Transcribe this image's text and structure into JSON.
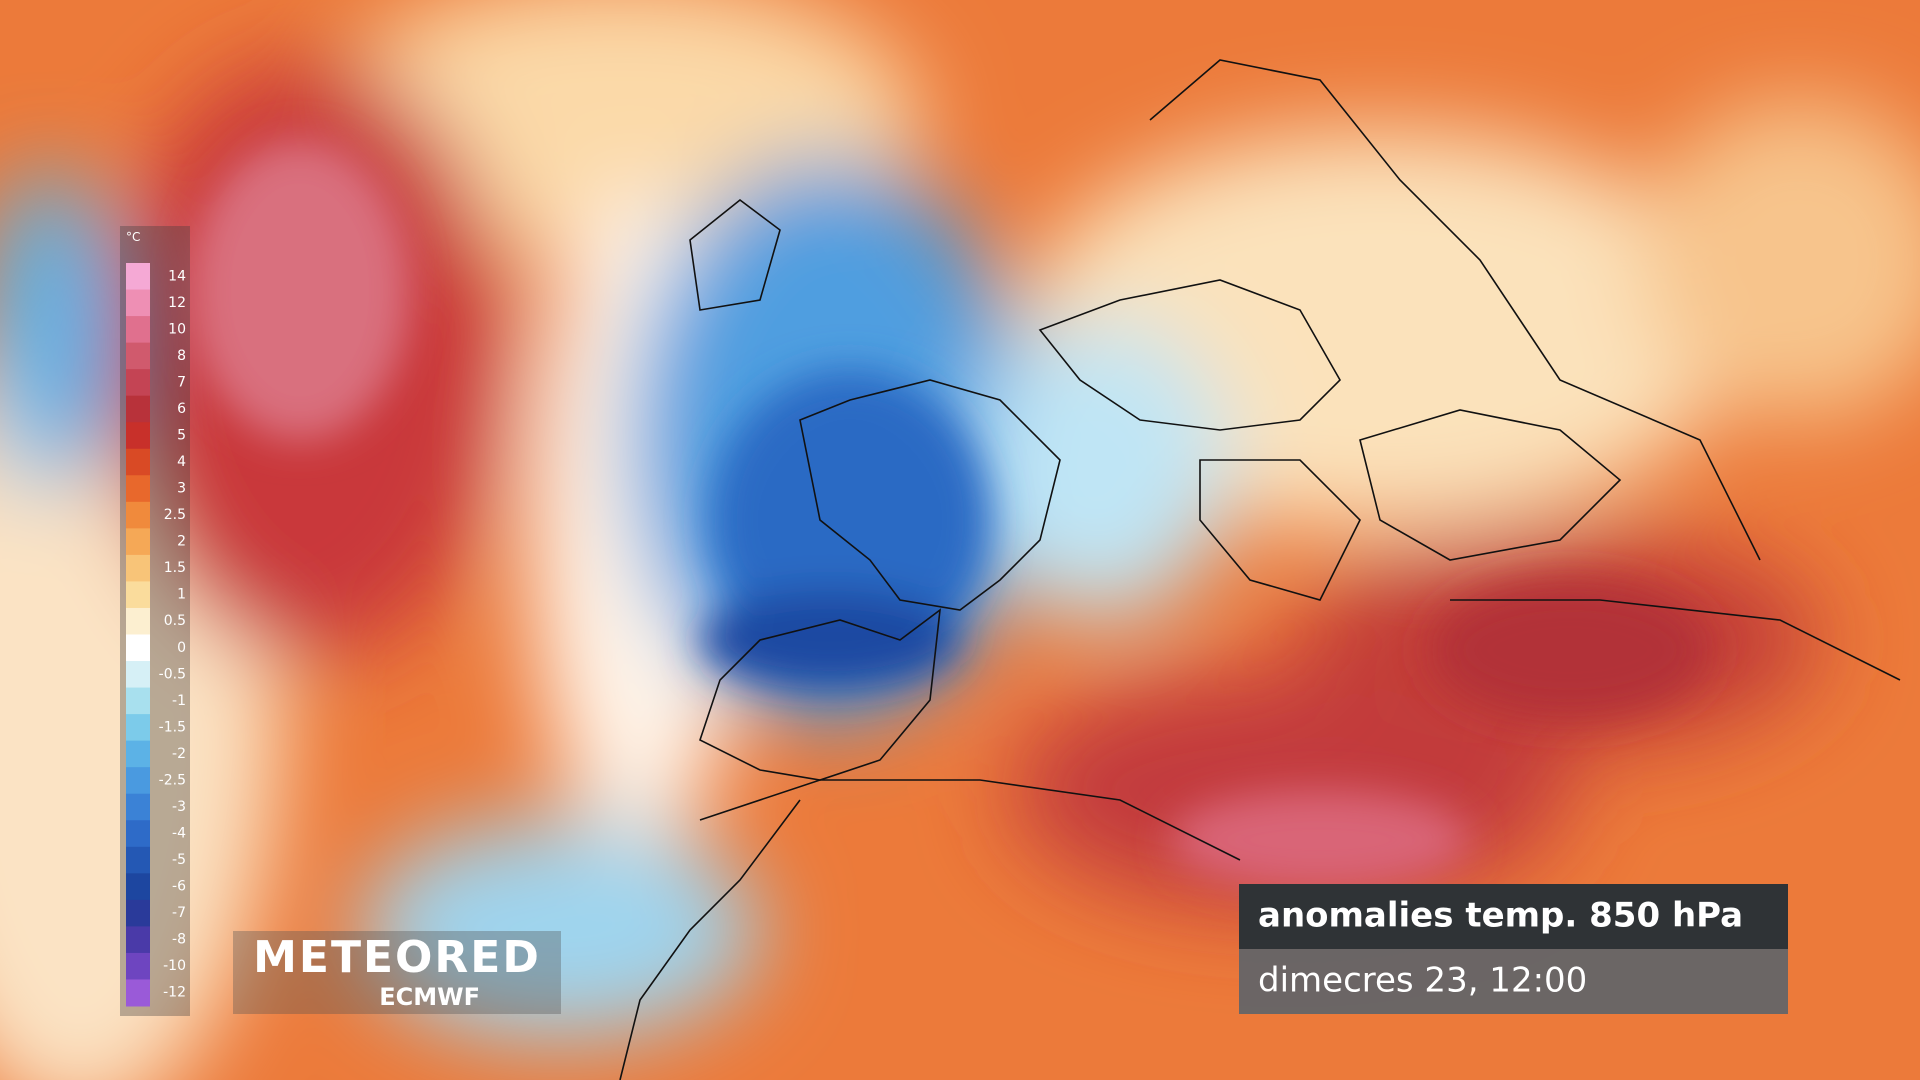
{
  "legend": {
    "unit": "°C",
    "levels": [
      14,
      12,
      10,
      8,
      7,
      6,
      5,
      4,
      3,
      2.5,
      2,
      1.5,
      1,
      0.5,
      0,
      -0.5,
      -1,
      -1.5,
      -2,
      -2.5,
      -3,
      -4,
      -5,
      -6,
      -7,
      -8,
      -10,
      -12
    ],
    "colors": [
      "#f5a9d5",
      "#ee8fb4",
      "#e0708e",
      "#d05a6d",
      "#c44454",
      "#b8323a",
      "#c8302a",
      "#d94a25",
      "#e8682c",
      "#f08a3c",
      "#f5a856",
      "#f8c478",
      "#fadc9c",
      "#fcefd0",
      "#ffffff",
      "#d6f0f6",
      "#a8e0ee",
      "#7ccbea",
      "#5cb2e6",
      "#4a9ae0",
      "#3b82d6",
      "#2e6bc8",
      "#2458b4",
      "#1d46a0",
      "#2a3a9a",
      "#4a3aa8",
      "#6e45c0",
      "#9a5ad8"
    ]
  },
  "caption": {
    "title": "anomalies temp. 850 hPa",
    "time": "dimecres 23, 12:00"
  },
  "logo": {
    "brand": "METEORED",
    "source": "ECMWF"
  }
}
